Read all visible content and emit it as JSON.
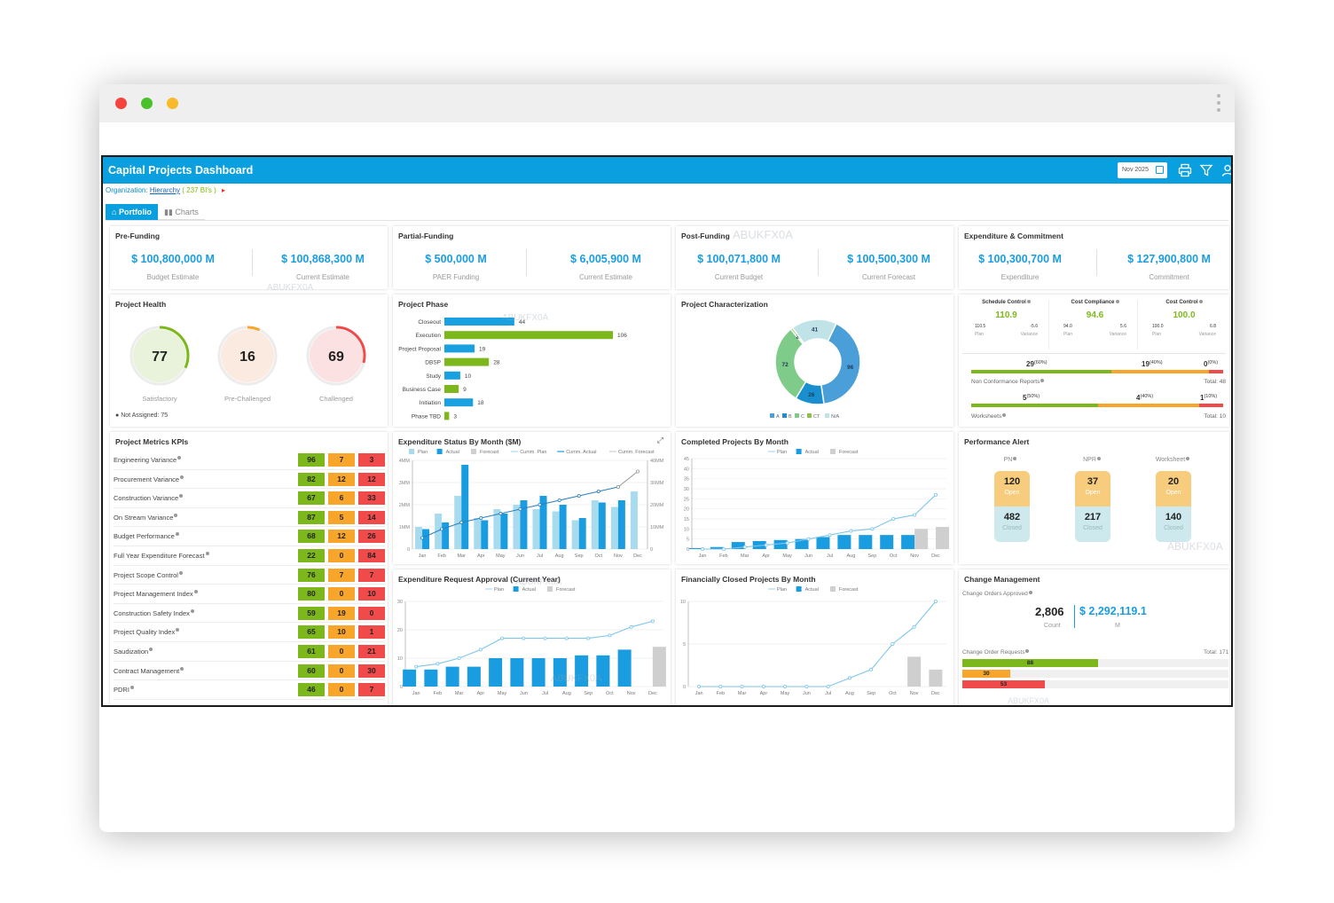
{
  "app": {
    "title": "Capital Projects Dashboard",
    "date": "Nov 2025",
    "org_label": "Organization:",
    "org_link": "Hierarchy",
    "org_count": "( 237 BI's )",
    "watermark": "ABUKFX0A"
  },
  "tabs": [
    {
      "label": "Portfolio",
      "active": true
    },
    {
      "label": "Charts",
      "active": false
    }
  ],
  "prefunding": {
    "title": "Pre-Funding",
    "values": [
      {
        "value": "$ 100,800,000 M",
        "label": "Budget Estimate"
      },
      {
        "value": "$ 100,868,300 M",
        "label": "Current Estimate"
      }
    ]
  },
  "partial": {
    "title": "Partial-Funding",
    "values": [
      {
        "value": "$ 500,000 M",
        "label": "PAER Funding"
      },
      {
        "value": "$ 6,005,900 M",
        "label": "Current Estimate"
      }
    ]
  },
  "postfunding": {
    "title": "Post-Funding",
    "values": [
      {
        "value": "$ 100,071,800 M",
        "label": "Current Budget"
      },
      {
        "value": "$ 100,500,300 M",
        "label": "Current Forecast"
      }
    ]
  },
  "expcommit": {
    "title": "Expenditure & Commitment",
    "values": [
      {
        "value": "$ 100,300,700 M",
        "label": "Expenditure"
      },
      {
        "value": "$ 127,900,800 M",
        "label": "Commitment"
      }
    ]
  },
  "health": {
    "title": "Project Health",
    "items": [
      {
        "value": "77",
        "label": "Satisfactory",
        "color": "#7cb81c",
        "bg": "#e9f3dc",
        "fraction": 0.32
      },
      {
        "value": "16",
        "label": "Pre-Challenged",
        "color": "#f7a52b",
        "bg": "#fbeadf",
        "fraction": 0.07
      },
      {
        "value": "69",
        "label": "Challenged",
        "color": "#f04a4a",
        "bg": "#fbe1e1",
        "fraction": 0.29
      }
    ],
    "not_assigned": "Not Assigned: 75"
  },
  "phase": {
    "title": "Project Phase",
    "rows": [
      {
        "name": "Closeout",
        "value": 44,
        "color": "#19a0e0"
      },
      {
        "name": "Execution",
        "value": 106,
        "color": "#7cb81c"
      },
      {
        "name": "Project Proposal",
        "value": 19,
        "color": "#19a0e0"
      },
      {
        "name": "DBSP",
        "value": 28,
        "color": "#7cb81c"
      },
      {
        "name": "Study",
        "value": 10,
        "color": "#19a0e0"
      },
      {
        "name": "Business Case",
        "value": 9,
        "color": "#7cb81c"
      },
      {
        "name": "Initiation",
        "value": 18,
        "color": "#19a0e0"
      },
      {
        "name": "Phase TBD",
        "value": 3,
        "color": "#7cb81c"
      }
    ]
  },
  "characterization": {
    "title": "Project Characterization",
    "slices": [
      {
        "name": "A",
        "value": 96,
        "color": "#4a9fd8"
      },
      {
        "name": "B",
        "value": 26,
        "color": "#1a8fd0"
      },
      {
        "name": "C",
        "value": 72,
        "color": "#7ecb8a"
      },
      {
        "name": "CT",
        "value": 2,
        "color": "#8bc34a"
      },
      {
        "name": "N/A",
        "value": 41,
        "color": "#bfe3e6"
      }
    ]
  },
  "controls": {
    "items": [
      {
        "title": "Schedule Control",
        "value": "110.9",
        "plan": "110.5",
        "variance": "-5.6",
        "plan_label": "Plan",
        "var_label": "Variance"
      },
      {
        "title": "Cost Compliance",
        "value": "94.6",
        "plan": "94.0",
        "variance": "5.6",
        "plan_label": "Plan",
        "var_label": "Variance"
      },
      {
        "title": "Cost Control",
        "value": "100.0",
        "plan": "100.0",
        "variance": "6.8",
        "plan_label": "Plan",
        "var_label": "Variance"
      }
    ],
    "ncr": {
      "label": "Non Conformance Reports",
      "green": "29",
      "green_pct": "(60%)",
      "orange": "19",
      "orange_pct": "(40%)",
      "red": "0",
      "red_pct": "(0%)",
      "total": "Total: 48"
    },
    "worksheets": {
      "label": "Worksheets",
      "green": "5",
      "green_pct": "(50%)",
      "orange": "4",
      "orange_pct": "(40%)",
      "red": "1",
      "red_pct": "(10%)",
      "total": "Total: 10"
    }
  },
  "kpis": {
    "title": "Project Metrics KPIs",
    "rows": [
      {
        "name": "Engineering Variance",
        "g": "96",
        "o": "7",
        "r": "3"
      },
      {
        "name": "Procurement Variance",
        "g": "82",
        "o": "12",
        "r": "12"
      },
      {
        "name": "Construction Variance",
        "g": "67",
        "o": "6",
        "r": "33"
      },
      {
        "name": "On Stream Variance",
        "g": "87",
        "o": "5",
        "r": "14"
      },
      {
        "name": "Budget Performance",
        "g": "68",
        "o": "12",
        "r": "26"
      },
      {
        "name": "Full Year Expenditure Forecast",
        "g": "22",
        "o": "0",
        "r": "84"
      },
      {
        "name": "Project Scope Control",
        "g": "76",
        "o": "7",
        "r": "7"
      },
      {
        "name": "Project Management Index",
        "g": "80",
        "o": "0",
        "r": "10"
      },
      {
        "name": "Construction Safety Index",
        "g": "59",
        "o": "19",
        "r": "0"
      },
      {
        "name": "Project Quality Index",
        "g": "65",
        "o": "10",
        "r": "1"
      },
      {
        "name": "Saudization",
        "g": "61",
        "o": "0",
        "r": "21"
      },
      {
        "name": "Contract Management",
        "g": "60",
        "o": "0",
        "r": "30"
      },
      {
        "name": "PDRI",
        "g": "46",
        "o": "0",
        "r": "7"
      }
    ]
  },
  "chart_data": [
    {
      "type": "bar",
      "title": "Expenditure Status By Month ($M)",
      "categories": [
        "Jan",
        "Feb",
        "Mar",
        "Apr",
        "May",
        "Jun",
        "Jul",
        "Aug",
        "Sep",
        "Oct",
        "Nov",
        "Dec"
      ],
      "legend": [
        "Plan",
        "Actual",
        "Forecast",
        "Cumm. Plan",
        "Cumm. Actual",
        "Cumm. Forecast"
      ],
      "series": [
        {
          "name": "Plan",
          "values": [
            1.0,
            1.6,
            2.4,
            1.4,
            1.8,
            2.0,
            1.8,
            1.7,
            1.3,
            2.2,
            1.9,
            2.6
          ]
        },
        {
          "name": "Actual",
          "values": [
            0.9,
            1.2,
            3.8,
            1.3,
            1.6,
            2.2,
            2.4,
            2.0,
            1.4,
            2.1,
            2.2,
            0
          ]
        },
        {
          "name": "Cumm. Actual",
          "values": [
            0.5,
            0.9,
            1.2,
            1.4,
            1.6,
            1.8,
            2.0,
            2.2,
            2.4,
            2.6,
            2.8,
            0
          ]
        },
        {
          "name": "Cumm. Forecast",
          "values": [
            0,
            0,
            0,
            0,
            0,
            0,
            0,
            0,
            0,
            0,
            2.8,
            3.5
          ]
        }
      ],
      "y_ticks_left": [
        "0",
        "1MM",
        "2MM",
        "3MM",
        "4MM"
      ],
      "y_ticks_right": [
        "0",
        "10MM",
        "20MM",
        "30MM",
        "40MM"
      ]
    },
    {
      "type": "bar",
      "title": "Completed Projects By Month",
      "categories": [
        "Jan",
        "Feb",
        "Mar",
        "Apr",
        "May",
        "Jun",
        "Jul",
        "Aug",
        "Sep",
        "Oct",
        "Nov",
        "Dec"
      ],
      "legend": [
        "Plan",
        "Actual",
        "Forecast"
      ],
      "series": [
        {
          "name": "Actual",
          "values": [
            0.5,
            1,
            3.5,
            4,
            4.5,
            5,
            6,
            7,
            7,
            7,
            7,
            0
          ]
        },
        {
          "name": "Forecast",
          "values": [
            0,
            0,
            0,
            0,
            0,
            0,
            0,
            0,
            0,
            0,
            10,
            11
          ]
        },
        {
          "name": "Plan",
          "values": [
            0,
            0,
            1,
            2,
            3,
            5,
            7,
            9,
            10,
            15,
            17,
            27
          ]
        }
      ],
      "y_ticks": [
        "0",
        "5",
        "10",
        "15",
        "20",
        "25",
        "30",
        "35",
        "40",
        "45"
      ]
    },
    {
      "type": "bar",
      "title": "Expenditure Request Approval (Current Year)",
      "categories": [
        "Jan",
        "Feb",
        "Mar",
        "Apr",
        "May",
        "Jun",
        "Jul",
        "Aug",
        "Sep",
        "Oct",
        "Nov",
        "Dec"
      ],
      "legend": [
        "Plan",
        "Actual",
        "Forecast"
      ],
      "series": [
        {
          "name": "Actual",
          "values": [
            6,
            6,
            7,
            7,
            10,
            10,
            10,
            10,
            11,
            11,
            13,
            0
          ]
        },
        {
          "name": "Forecast",
          "values": [
            0,
            0,
            0,
            0,
            0,
            0,
            0,
            0,
            0,
            0,
            0,
            14
          ]
        },
        {
          "name": "Plan",
          "values": [
            7,
            8,
            10,
            13,
            17,
            17,
            17,
            17,
            17,
            18,
            21,
            23
          ]
        }
      ],
      "y_ticks": [
        "0",
        "10",
        "20",
        "30"
      ]
    },
    {
      "type": "bar",
      "title": "Financially Closed Projects By Month",
      "categories": [
        "Jan",
        "Feb",
        "Mar",
        "Apr",
        "May",
        "Jun",
        "Jul",
        "Aug",
        "Sep",
        "Oct",
        "Nov",
        "Dec"
      ],
      "legend": [
        "Plan",
        "Actual",
        "Forecast"
      ],
      "series": [
        {
          "name": "Forecast",
          "values": [
            0,
            0,
            0,
            0,
            0,
            0,
            0,
            0,
            0,
            0,
            3.5,
            2
          ]
        },
        {
          "name": "Plan",
          "values": [
            0,
            0,
            0,
            0,
            0,
            0,
            0,
            1,
            2,
            5,
            7,
            10
          ]
        }
      ],
      "y_ticks": [
        "0",
        "5",
        "10"
      ]
    }
  ],
  "alerts": {
    "title": "Performance Alert",
    "cols": [
      {
        "head": "PN",
        "open": "120",
        "closed": "482"
      },
      {
        "head": "NPR",
        "open": "37",
        "closed": "217"
      },
      {
        "head": "Worksheet",
        "open": "20",
        "closed": "140"
      }
    ],
    "open_label": "Open",
    "closed_label": "Closed"
  },
  "change": {
    "title": "Change Management",
    "approved_label": "Change Orders Approved",
    "count": "2,806",
    "count_label": "Count",
    "amount": "$ 2,292,119.1",
    "amount_label": "M",
    "requests_label": "Change Order Requests",
    "total": "Total: 171",
    "bars": [
      {
        "value": "88",
        "color": "#7cb81c",
        "fraction": 0.51
      },
      {
        "value": "30",
        "color": "#f7a52b",
        "fraction": 0.18
      },
      {
        "value": "53",
        "color": "#f04a4a",
        "fraction": 0.31
      }
    ]
  }
}
